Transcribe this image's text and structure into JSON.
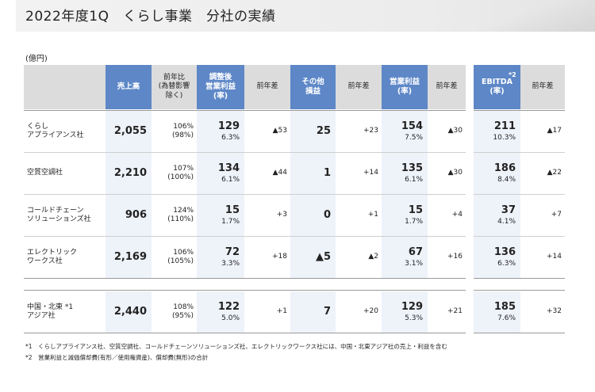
{
  "title": "2022年度1Q　くらし事業　分社の実績",
  "unit": "(億円)",
  "headers": {
    "sales": "売上高",
    "yoy_line1": "前年比",
    "yoy_line2": "(為替影響",
    "yoy_line3": "除く)",
    "adj_op_line1": "調整後",
    "adj_op_line2": "営業利益",
    "adj_op_line3": "(率)",
    "diff1": "前年差",
    "other_line1": "その他",
    "other_line2": "損益",
    "diff2": "前年差",
    "op_line1": "営業利益",
    "op_line2": "(率)",
    "diff3": "前年差",
    "ebitda_line1": "EBITDA",
    "ebitda_line2": "(率)",
    "ebitda_sup": "*2",
    "diff4": "前年差"
  },
  "rows": [
    {
      "name1": "くらし",
      "name2": "アプライアンス社",
      "sales": "2,055",
      "yoy": "106%",
      "yoy_ex": "(98%)",
      "adj_op": "129",
      "adj_rate": "6.3%",
      "adj_diff": "▲53",
      "other": "25",
      "other_diff": "+23",
      "op": "154",
      "op_rate": "7.5%",
      "op_diff": "▲30",
      "ebitda": "211",
      "ebitda_rate": "10.3%",
      "ebitda_diff": "▲17"
    },
    {
      "name1": "空質空調社",
      "name2": "",
      "sales": "2,210",
      "yoy": "107%",
      "yoy_ex": "(100%)",
      "adj_op": "134",
      "adj_rate": "6.1%",
      "adj_diff": "▲44",
      "other": "1",
      "other_diff": "+14",
      "op": "135",
      "op_rate": "6.1%",
      "op_diff": "▲30",
      "ebitda": "186",
      "ebitda_rate": "8.4%",
      "ebitda_diff": "▲22"
    },
    {
      "name1": "コールドチェーン",
      "name2": "ソリューションズ社",
      "sales": "906",
      "yoy": "124%",
      "yoy_ex": "(110%)",
      "adj_op": "15",
      "adj_rate": "1.7%",
      "adj_diff": "+3",
      "other": "0",
      "other_diff": "+1",
      "op": "15",
      "op_rate": "1.7%",
      "op_diff": "+4",
      "ebitda": "37",
      "ebitda_rate": "4.1%",
      "ebitda_diff": "+7"
    },
    {
      "name1": "エレクトリック",
      "name2": "ワークス社",
      "sales": "2,169",
      "yoy": "106%",
      "yoy_ex": "(105%)",
      "adj_op": "72",
      "adj_rate": "3.3%",
      "adj_diff": "+18",
      "other": "▲5",
      "other_diff": "▲2",
      "op": "67",
      "op_rate": "3.1%",
      "op_diff": "+16",
      "ebitda": "136",
      "ebitda_rate": "6.3%",
      "ebitda_diff": "+14"
    },
    {
      "name1": "中国・北東 *1",
      "name2": "アジア社",
      "sales": "2,440",
      "yoy": "108%",
      "yoy_ex": "(95%)",
      "adj_op": "122",
      "adj_rate": "5.0%",
      "adj_diff": "+1",
      "other": "7",
      "other_diff": "+20",
      "op": "129",
      "op_rate": "5.3%",
      "op_diff": "+21",
      "ebitda": "185",
      "ebitda_rate": "7.6%",
      "ebitda_diff": "+32"
    }
  ],
  "footnotes": [
    "*1　くらしアプライアンス社、空質空調社、コールドチェーンソリューションズ社、エレクトリックワークス社には、中国・北東アジア社の売上・利益を含む",
    "*2　営業利益と減価償却費(有形／使用権資産)、償却費(無形)の合計"
  ]
}
